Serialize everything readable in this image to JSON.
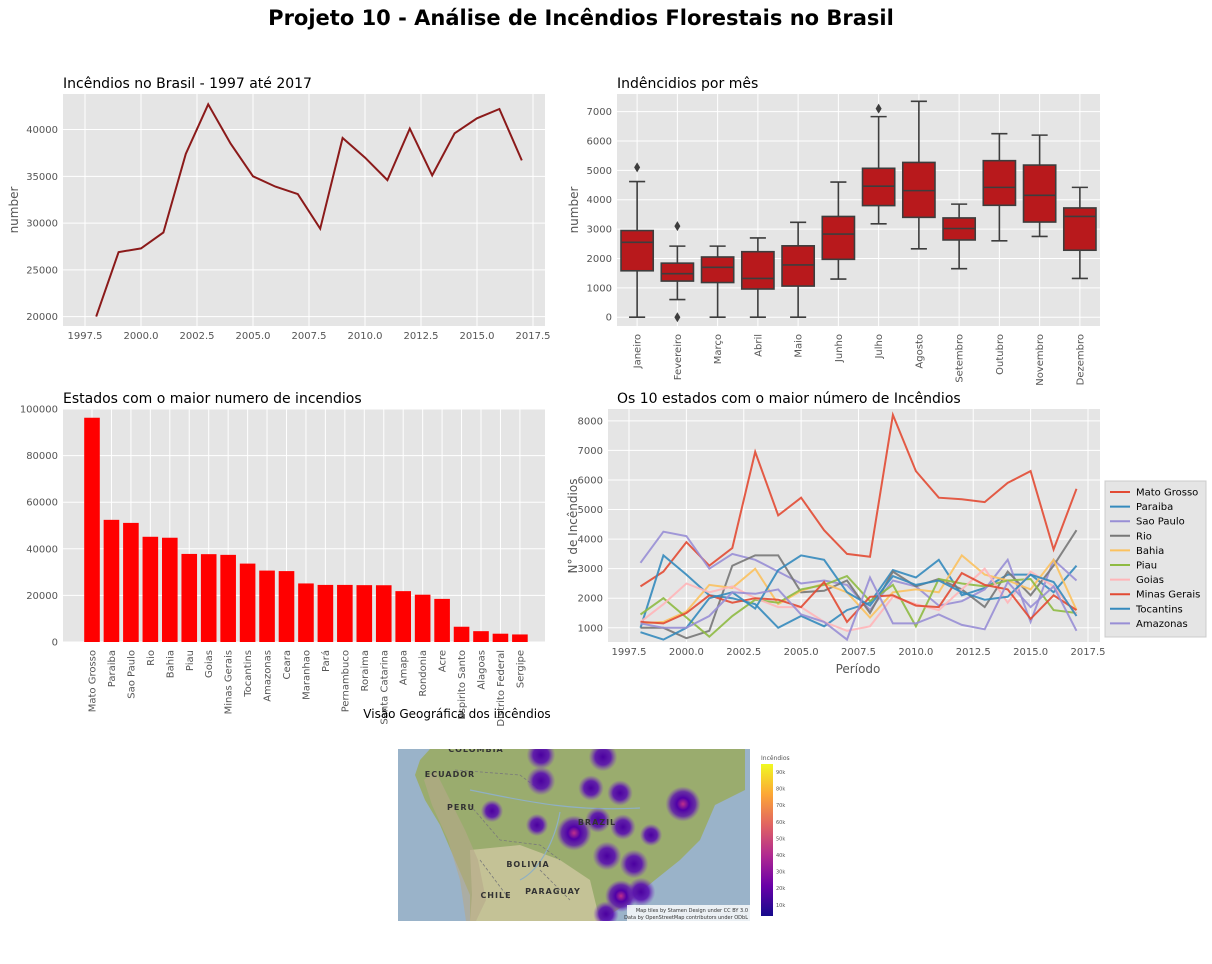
{
  "figure": {
    "suptitle": "Projeto 10 - Análise de Incêndios Florestais no Brasil"
  },
  "chart_data": [
    {
      "type": "line",
      "title": "Incêndios no Brasil - 1997 até 2017",
      "xlabel": "",
      "ylabel": "number",
      "x": [
        1998,
        1999,
        2000,
        2001,
        2002,
        2003,
        2004,
        2005,
        2006,
        2007,
        2008,
        2009,
        2010,
        2011,
        2012,
        2013,
        2014,
        2015,
        2016,
        2017
      ],
      "values": [
        20000,
        26900,
        27300,
        29000,
        37400,
        42700,
        38500,
        35000,
        33900,
        33100,
        29400,
        39100,
        37000,
        34600,
        40100,
        35100,
        39600,
        41200,
        42200,
        36700
      ],
      "xlim": [
        1997.5,
        2017.5
      ],
      "ylim": [
        19000,
        43800
      ],
      "xticks": [
        "1997.5",
        "2000.0",
        "2002.5",
        "2005.0",
        "2007.5",
        "2010.0",
        "2012.5",
        "2015.0",
        "2017.5"
      ],
      "yticks": [
        "20000",
        "25000",
        "30000",
        "35000",
        "40000"
      ],
      "color": "#8b1a1a",
      "grid": true
    },
    {
      "type": "box",
      "title": "Indêncidios por mês",
      "xlabel": "",
      "ylabel": "number",
      "ylim": [
        -300,
        7600
      ],
      "yticks": [
        "0",
        "1000",
        "2000",
        "3000",
        "4000",
        "5000",
        "6000",
        "7000"
      ],
      "color": "#b8191c",
      "grid": true,
      "boxes": [
        {
          "label": "Janeiro",
          "min": 0,
          "q1": 1580,
          "median": 2550,
          "q3": 2950,
          "max": 4620,
          "outliers": [
            5100
          ]
        },
        {
          "label": "Fevereiro",
          "min": 600,
          "q1": 1230,
          "median": 1480,
          "q3": 1840,
          "max": 2420,
          "outliers": [
            3100,
            0
          ]
        },
        {
          "label": "Março",
          "min": 0,
          "q1": 1180,
          "median": 1700,
          "q3": 2050,
          "max": 2420,
          "outliers": []
        },
        {
          "label": "Abril",
          "min": 0,
          "q1": 960,
          "median": 1320,
          "q3": 2230,
          "max": 2700,
          "outliers": []
        },
        {
          "label": "Maio",
          "min": 0,
          "q1": 1060,
          "median": 1780,
          "q3": 2430,
          "max": 3230,
          "outliers": []
        },
        {
          "label": "Junho",
          "min": 1300,
          "q1": 1970,
          "median": 2830,
          "q3": 3430,
          "max": 4600,
          "outliers": []
        },
        {
          "label": "Julho",
          "min": 3180,
          "q1": 3800,
          "median": 4460,
          "q3": 5070,
          "max": 6830,
          "outliers": [
            7100
          ]
        },
        {
          "label": "Agosto",
          "min": 2330,
          "q1": 3400,
          "median": 4310,
          "q3": 5270,
          "max": 7350,
          "outliers": []
        },
        {
          "label": "Setembro",
          "min": 1650,
          "q1": 2630,
          "median": 3020,
          "q3": 3380,
          "max": 3850,
          "outliers": []
        },
        {
          "label": "Outubro",
          "min": 2600,
          "q1": 3810,
          "median": 4420,
          "q3": 5330,
          "max": 6250,
          "outliers": []
        },
        {
          "label": "Novembro",
          "min": 2750,
          "q1": 3240,
          "median": 4150,
          "q3": 5180,
          "max": 6200,
          "outliers": []
        },
        {
          "label": "Dezembro",
          "min": 1320,
          "q1": 2280,
          "median": 3430,
          "q3": 3720,
          "max": 4420,
          "outliers": []
        }
      ]
    },
    {
      "type": "bar",
      "title": "Estados com o maior numero de incendios",
      "xlabel": "",
      "ylabel": "",
      "categories": [
        "Mato Grosso",
        "Paraiba",
        "Sao Paulo",
        "Rio",
        "Bahia",
        "Piau",
        "Goias",
        "Minas Gerais",
        "Tocantins",
        "Amazonas",
        "Ceara",
        "Maranhao",
        "Pará",
        "Pernambuco",
        "Roraima",
        "Santa Catarina",
        "Amapa",
        "Rondonia",
        "Acre",
        "Espirito Santo",
        "Alagoas",
        "Distrito Federal",
        "Sergipe"
      ],
      "values": [
        96250,
        52430,
        51120,
        45160,
        44750,
        37800,
        37700,
        37400,
        33650,
        30650,
        30430,
        25130,
        24500,
        24500,
        24400,
        24360,
        21830,
        20300,
        18500,
        6550,
        4650,
        3560,
        3240
      ],
      "ylim": [
        0,
        100000
      ],
      "yticks": [
        "0",
        "20000",
        "40000",
        "60000",
        "80000",
        "100000"
      ],
      "color": "#ff0000",
      "grid": true
    },
    {
      "type": "line",
      "title": "Os 10 estados com o maior número de Incêndios",
      "xlabel": "Período",
      "ylabel": "N° de Incêndios",
      "x": [
        1998,
        1999,
        2000,
        2001,
        2002,
        2003,
        2004,
        2005,
        2006,
        2007,
        2008,
        2009,
        2010,
        2011,
        2012,
        2013,
        2014,
        2015,
        2016,
        2017
      ],
      "xlim": [
        1997.5,
        2017.5
      ],
      "ylim": [
        520,
        8400
      ],
      "xticks": [
        "1997.5",
        "2000.0",
        "2002.5",
        "2005.0",
        "2007.5",
        "2010.0",
        "2012.5",
        "2015.0",
        "2017.5"
      ],
      "yticks": [
        "1000",
        "2000",
        "3000",
        "4000",
        "5000",
        "6000",
        "7000",
        "8000"
      ],
      "legend": "right",
      "grid": true,
      "series": [
        {
          "name": "Mato Grosso",
          "color": "#e24a33",
          "values": [
            2400,
            2900,
            3900,
            3100,
            3700,
            6950,
            4800,
            5400,
            4300,
            3500,
            3400,
            8200,
            6300,
            5400,
            5350,
            5250,
            5900,
            6300,
            3650,
            5700
          ]
        },
        {
          "name": "Paraiba",
          "color": "#348abd",
          "values": [
            1000,
            3450,
            2800,
            2100,
            2000,
            1800,
            1000,
            1400,
            1050,
            1600,
            1850,
            2950,
            2700,
            3300,
            2100,
            2350,
            2800,
            2800,
            2200,
            3100
          ]
        },
        {
          "name": "Sao Paulo",
          "color": "#988ed5",
          "values": [
            3200,
            4250,
            4100,
            3000,
            3500,
            3300,
            2900,
            2500,
            2600,
            2450,
            1600,
            2600,
            2400,
            1750,
            1900,
            2300,
            3300,
            1200,
            3300,
            2600
          ]
        },
        {
          "name": "Rio",
          "color": "#777777",
          "values": [
            1000,
            1000,
            650,
            900,
            3100,
            3450,
            3450,
            2200,
            2250,
            2600,
            1500,
            2900,
            2400,
            2650,
            2300,
            1700,
            2900,
            2100,
            3100,
            4300
          ]
        },
        {
          "name": "Bahia",
          "color": "#fbc15e",
          "values": [
            1150,
            1200,
            1550,
            2450,
            2350,
            3000,
            1800,
            2250,
            2500,
            2200,
            1350,
            2200,
            2300,
            2200,
            3450,
            2800,
            2600,
            2300,
            3300,
            1600
          ]
        },
        {
          "name": "Piau",
          "color": "#8eba42",
          "values": [
            1450,
            2000,
            1350,
            700,
            1400,
            1950,
            1850,
            2300,
            2450,
            2750,
            1900,
            2450,
            1050,
            2650,
            2500,
            2400,
            2600,
            2650,
            1600,
            1500
          ]
        },
        {
          "name": "Goias",
          "color": "#ffb5b8",
          "values": [
            1200,
            1800,
            2500,
            2200,
            2400,
            2000,
            1700,
            1700,
            1200,
            900,
            1050,
            2050,
            1800,
            1600,
            2300,
            3000,
            1850,
            2900,
            2400,
            1450
          ]
        },
        {
          "name": "Minas Gerais",
          "color": "#e24a33",
          "values": [
            1200,
            1150,
            1500,
            2100,
            1850,
            2000,
            1950,
            1700,
            2550,
            1200,
            2050,
            2100,
            1750,
            1700,
            2850,
            2450,
            2300,
            1300,
            2100,
            1600
          ]
        },
        {
          "name": "Tocantins",
          "color": "#348abd",
          "values": [
            850,
            600,
            1000,
            2000,
            2200,
            1650,
            2950,
            3450,
            3300,
            2200,
            1750,
            2750,
            2450,
            2600,
            2200,
            1950,
            2050,
            2800,
            2550,
            1400
          ]
        },
        {
          "name": "Amazonas",
          "color": "#988ed5",
          "values": [
            1150,
            1000,
            1000,
            1400,
            2200,
            2150,
            2300,
            1450,
            1200,
            600,
            2700,
            1150,
            1150,
            1450,
            1100,
            950,
            2550,
            1700,
            2400,
            900
          ]
        }
      ]
    }
  ],
  "map": {
    "title": "Visão Geográfica dos incêndios",
    "countries": [
      "COLOMBIA",
      "ECUADOR",
      "PERU",
      "BRAZIL",
      "BOLIVIA",
      "CHILE",
      "PARAGUAY"
    ],
    "attribution_line1": "Map tiles by Stamen Design under CC BY 3.0",
    "attribution_line2": "Data by OpenStreetMap contributors under ODbL",
    "colorbar_title": "Incêndios",
    "colorbar_ticks": [
      "90k",
      "80k",
      "70k",
      "60k",
      "50k",
      "40k",
      "30k",
      "20k",
      "10k"
    ]
  }
}
